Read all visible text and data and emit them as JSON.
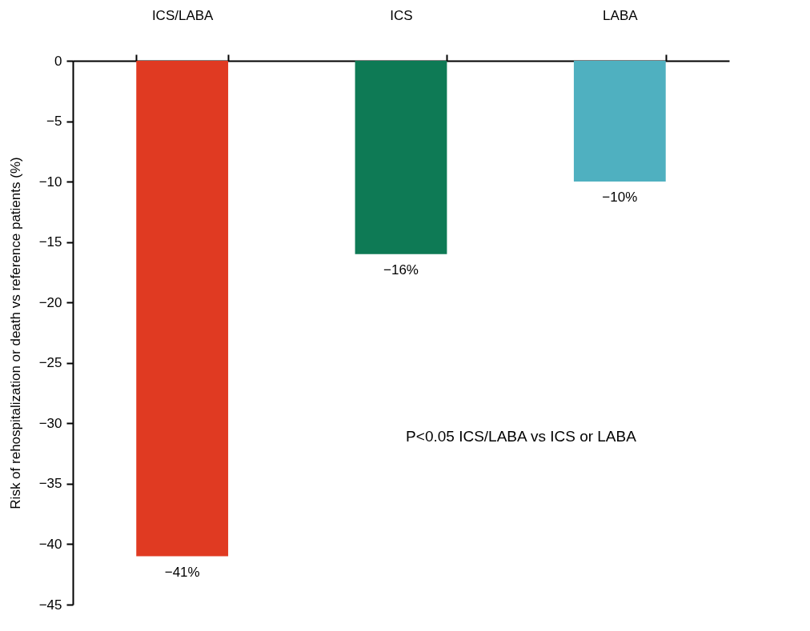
{
  "chart_data": {
    "type": "bar",
    "ylabel": "Risk of rehospitalization or death vs reference patients (%)",
    "categories": [
      "ICS/LABA",
      "ICS",
      "LABA"
    ],
    "values": [
      -41,
      -16,
      -10
    ],
    "colors": [
      "#e03a22",
      "#0e7a55",
      "#4fb0c0"
    ],
    "value_labels": [
      "−41%",
      "−16%",
      "−10%"
    ],
    "ylim": [
      -45,
      0
    ],
    "yticks": [
      0,
      -5,
      -10,
      -15,
      -20,
      -25,
      -30,
      -35,
      -40,
      -45
    ],
    "grid": false,
    "legend": false,
    "annotations": [
      "P<0.05 ICS/LABA vs ICS or LABA"
    ]
  }
}
